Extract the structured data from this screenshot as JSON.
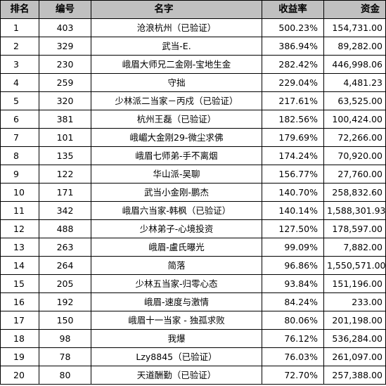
{
  "table": {
    "headers": {
      "rank": "排名",
      "code": "编号",
      "name": "名字",
      "rate": "收益率",
      "fund": "资金"
    },
    "rows": [
      {
        "rank": "1",
        "code": "403",
        "name": "沧浪杭州（已验证）",
        "rate": "500.23%",
        "fund": "154,731.00"
      },
      {
        "rank": "2",
        "code": "329",
        "name": "武当-E.",
        "rate": "386.94%",
        "fund": "89,282.00"
      },
      {
        "rank": "3",
        "code": "230",
        "name": "峨眉大师兄二金刚-宝地生金",
        "rate": "282.42%",
        "fund": "446,998.06"
      },
      {
        "rank": "4",
        "code": "259",
        "name": "守拙",
        "rate": "229.04%",
        "fund": "4,481.23"
      },
      {
        "rank": "5",
        "code": "320",
        "name": "少林派二当家－丙戍（已验证）",
        "rate": "217.61%",
        "fund": "63,525.00"
      },
      {
        "rank": "6",
        "code": "381",
        "name": "杭州王磊（已验证）",
        "rate": "182.56%",
        "fund": "100,424.00"
      },
      {
        "rank": "7",
        "code": "101",
        "name": "峨嵋大金刚29-微尘求佛",
        "rate": "179.69%",
        "fund": "72,266.00"
      },
      {
        "rank": "8",
        "code": "135",
        "name": "峨眉七师弟-手不离烟",
        "rate": "174.24%",
        "fund": "70,920.00"
      },
      {
        "rank": "9",
        "code": "122",
        "name": "华山派-吴聊",
        "rate": "156.77%",
        "fund": "27,760.00"
      },
      {
        "rank": "10",
        "code": "171",
        "name": "武当小金刚-鹏杰",
        "rate": "140.70%",
        "fund": "258,832.60"
      },
      {
        "rank": "11",
        "code": "342",
        "name": "峨眉六当家-韩枫（已验证）",
        "rate": "140.14%",
        "fund": "1,588,301.93"
      },
      {
        "rank": "12",
        "code": "488",
        "name": "少林弟子-心境投资",
        "rate": "127.50%",
        "fund": "178,597.00"
      },
      {
        "rank": "13",
        "code": "263",
        "name": "峨眉-盧氏曝光",
        "rate": "99.09%",
        "fund": "7,882.00"
      },
      {
        "rank": "14",
        "code": "264",
        "name": "简落",
        "rate": "96.86%",
        "fund": "1,550,571.00"
      },
      {
        "rank": "15",
        "code": "205",
        "name": "少林五当家-归零心态",
        "rate": "93.84%",
        "fund": "151,196.00"
      },
      {
        "rank": "16",
        "code": "192",
        "name": "峨眉-速度与激情",
        "rate": "84.24%",
        "fund": "233.00"
      },
      {
        "rank": "17",
        "code": "150",
        "name": "峨眉十一当家 - 独孤求败",
        "rate": "80.06%",
        "fund": "201,198.00"
      },
      {
        "rank": "18",
        "code": "98",
        "name": "我爆",
        "rate": "76.12%",
        "fund": "536,284.00"
      },
      {
        "rank": "19",
        "code": "78",
        "name": "Lzy8845（已验证）",
        "rate": "76.03%",
        "fund": "261,097.00"
      },
      {
        "rank": "20",
        "code": "80",
        "name": "天道酬勤（已验证）",
        "rate": "72.70%",
        "fund": "257,388.00"
      }
    ]
  }
}
